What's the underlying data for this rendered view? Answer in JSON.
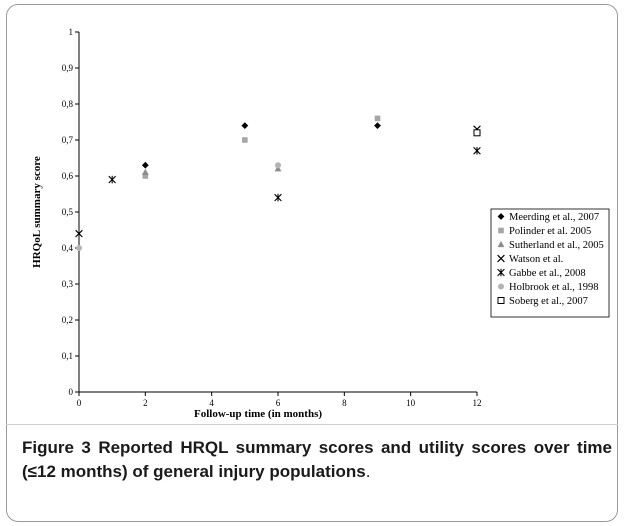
{
  "caption": {
    "label": "Figure 3",
    "text": "Reported HRQL summary scores and utility scores over time (≤12 months) of general injury populations",
    "end": "."
  },
  "chart_data": {
    "type": "scatter",
    "xlabel": "Follow-up time (in months)",
    "ylabel": "HRQoL summary score",
    "xlim": [
      0,
      12
    ],
    "ylim": [
      0,
      1
    ],
    "x_ticks": [
      "0",
      "2",
      "4",
      "6",
      "8",
      "10",
      "12"
    ],
    "y_ticks": [
      "0",
      "0,1",
      "0,2",
      "0,3",
      "0,4",
      "0,5",
      "0,6",
      "0,7",
      "0,8",
      "0,9",
      "1"
    ],
    "legend_position": "right",
    "series": [
      {
        "name": "Meerding et al., 2007",
        "marker": "diamond",
        "color": "#000000",
        "points": [
          [
            2,
            0.63
          ],
          [
            5,
            0.74
          ],
          [
            9,
            0.74
          ]
        ]
      },
      {
        "name": "Polinder et al. 2005",
        "marker": "square",
        "color": "#a6a6a6",
        "points": [
          [
            2,
            0.6
          ],
          [
            5,
            0.7
          ],
          [
            9,
            0.76
          ]
        ]
      },
      {
        "name": "Sutherland et al., 2005",
        "marker": "triangle",
        "color": "#8c8c8c",
        "points": [
          [
            2,
            0.61
          ],
          [
            6,
            0.62
          ]
        ]
      },
      {
        "name": "Watson et al.",
        "marker": "x",
        "color": "#000000",
        "points": [
          [
            0,
            0.44
          ],
          [
            12,
            0.73
          ]
        ]
      },
      {
        "name": "Gabbe et al., 2008",
        "marker": "asterisk",
        "color": "#000000",
        "points": [
          [
            1,
            0.59
          ],
          [
            6,
            0.54
          ],
          [
            12,
            0.67
          ]
        ]
      },
      {
        "name": "Holbrook et al.,  1998",
        "marker": "circle",
        "color": "#b3b3b3",
        "points": [
          [
            0,
            0.4
          ],
          [
            6,
            0.63
          ]
        ]
      },
      {
        "name": "Soberg et al., 2007",
        "marker": "open-square",
        "color": "#000000",
        "points": [
          [
            12,
            0.72
          ]
        ]
      }
    ]
  }
}
